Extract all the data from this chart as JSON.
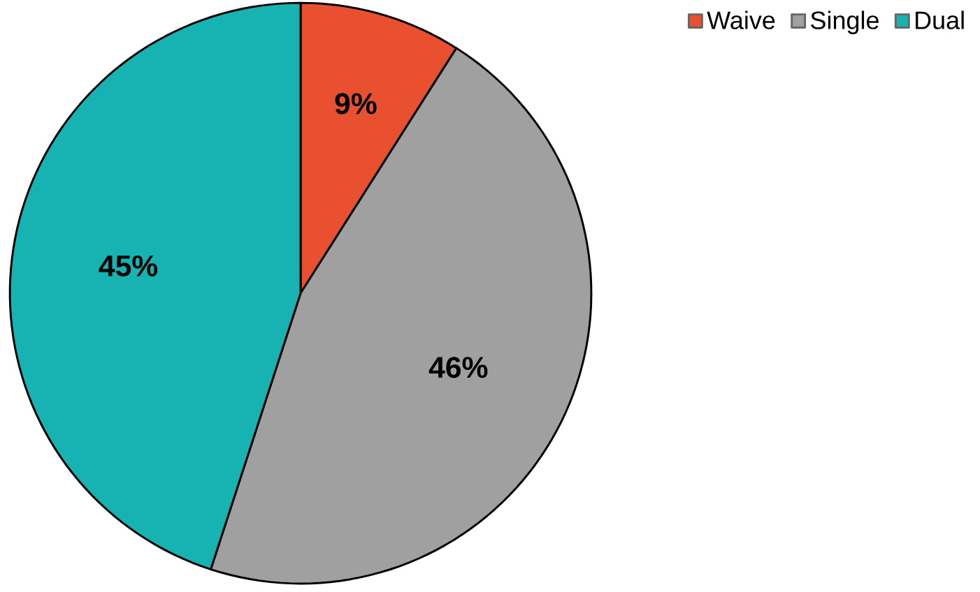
{
  "chart_data": {
    "type": "pie",
    "categories": [
      "Waive",
      "Single",
      "Dual"
    ],
    "values": [
      9,
      46,
      45
    ],
    "colors": [
      "#e8502f",
      "#a0a0a0",
      "#17b2b2"
    ],
    "value_labels": [
      "9%",
      "46%",
      "45%"
    ],
    "legend": "top right"
  }
}
